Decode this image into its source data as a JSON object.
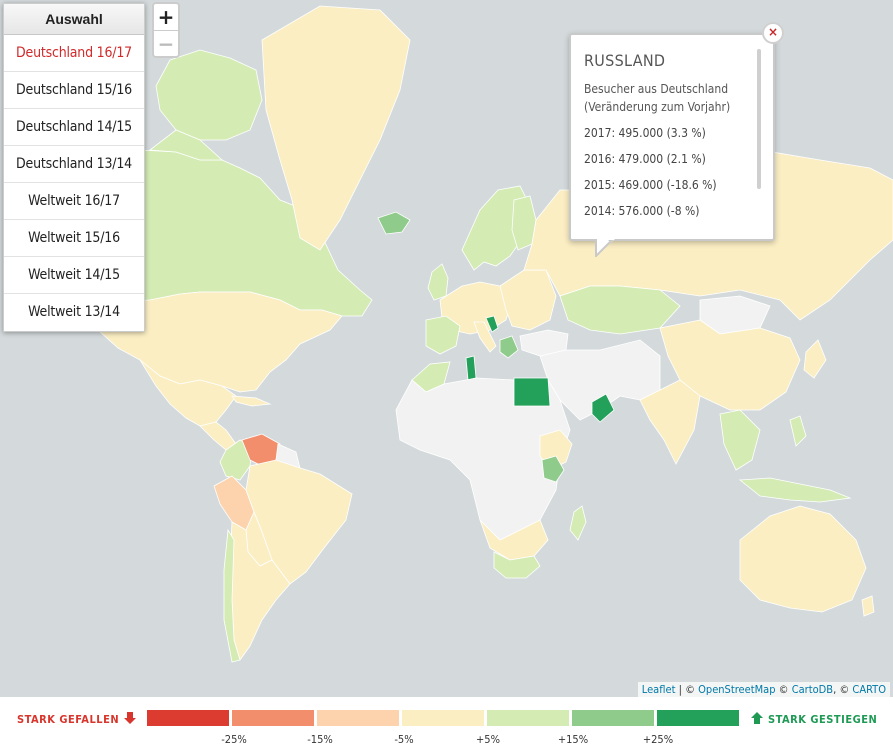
{
  "menu": {
    "title": "Auswahl",
    "items": [
      "Deutschland 16/17",
      "Deutschland 15/16",
      "Deutschland 14/15",
      "Deutschland 13/14",
      "Weltweit 16/17",
      "Weltweit 15/16",
      "Weltweit 14/15",
      "Weltweit 13/14"
    ],
    "active_index": 0
  },
  "zoom": {
    "in_label": "+",
    "out_label": "−"
  },
  "popup": {
    "title": "RUSSLAND",
    "subtitle_line1": "Besucher aus Deutschland",
    "subtitle_line2": "(Veränderung zum Vorjahr)",
    "rows": [
      "2017: 495.000 (3.3 %)",
      "2016: 479.000 (2.1 %)",
      "2015: 469.000 (-18.6 %)",
      "2014: 576.000 (-8 %)"
    ],
    "close_label": "×"
  },
  "attribution": {
    "leaflet": "Leaflet",
    "sep1": " | © ",
    "osm": "OpenStreetMap",
    "sep2": " © ",
    "cartodb": "CartoDB",
    "sep3": ", © ",
    "carto": "CARTO"
  },
  "legend": {
    "left_label": "STARK GEFALLEN",
    "right_label": "STARK GESTIEGEN",
    "colors": [
      "#dc3b30",
      "#f38e6d",
      "#fcd3ad",
      "#fbeec3",
      "#d4ebb4",
      "#8fcb8a",
      "#23a05a"
    ],
    "ticks": [
      "-25%",
      "-15%",
      "-5%",
      "+5%",
      "+15%",
      "+25%"
    ],
    "no_data_color": "#f2f2f2",
    "left_color": "#d8362d",
    "right_color": "#1e9a55"
  },
  "map": {
    "ocean_color": "#d4dadc"
  }
}
